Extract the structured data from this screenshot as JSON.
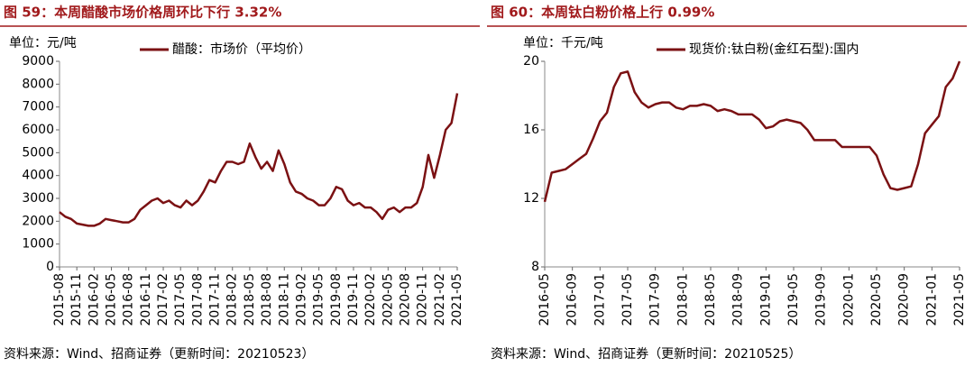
{
  "chart_data": [
    {
      "type": "line",
      "title": "图 59：本周醋酸市场价格周环比下行 3.32%",
      "unit_label": "单位：元/吨",
      "source": "资料来源：Wind、招商证券（更新时间：20210523）",
      "x": [
        "2015-08",
        "2015-09",
        "2015-10",
        "2015-11",
        "2015-12",
        "2016-01",
        "2016-02",
        "2016-03",
        "2016-04",
        "2016-05",
        "2016-06",
        "2016-07",
        "2016-08",
        "2016-09",
        "2016-10",
        "2016-11",
        "2016-12",
        "2017-01",
        "2017-02",
        "2017-03",
        "2017-04",
        "2017-05",
        "2017-06",
        "2017-07",
        "2017-08",
        "2017-09",
        "2017-10",
        "2017-11",
        "2017-12",
        "2018-01",
        "2018-02",
        "2018-03",
        "2018-04",
        "2018-05",
        "2018-06",
        "2018-07",
        "2018-08",
        "2018-09",
        "2018-10",
        "2018-11",
        "2018-12",
        "2019-01",
        "2019-02",
        "2019-03",
        "2019-04",
        "2019-05",
        "2019-06",
        "2019-07",
        "2019-08",
        "2019-09",
        "2019-10",
        "2019-11",
        "2019-12",
        "2020-01",
        "2020-02",
        "2020-03",
        "2020-04",
        "2020-05",
        "2020-06",
        "2020-07",
        "2020-08",
        "2020-09",
        "2020-10",
        "2020-11",
        "2020-12",
        "2021-01",
        "2021-02",
        "2021-03",
        "2021-04",
        "2021-05"
      ],
      "series": [
        {
          "name": "醋酸：市场价（平均价）",
          "color": "#7b1113",
          "values": [
            2400,
            2200,
            2100,
            1900,
            1850,
            1800,
            1800,
            1900,
            2100,
            2050,
            2000,
            1950,
            1950,
            2100,
            2500,
            2700,
            2900,
            3000,
            2800,
            2900,
            2700,
            2600,
            2900,
            2700,
            2900,
            3300,
            3800,
            3700,
            4200,
            4600,
            4600,
            4500,
            4600,
            5400,
            4800,
            4300,
            4600,
            4200,
            5100,
            4500,
            3700,
            3300,
            3200,
            3000,
            2900,
            2700,
            2700,
            3000,
            3500,
            3400,
            2900,
            2700,
            2800,
            2600,
            2600,
            2400,
            2100,
            2500,
            2600,
            2400,
            2600,
            2600,
            2800,
            3500,
            4900,
            3900,
            4900,
            6000,
            6300,
            7600
          ]
        }
      ],
      "xticks": [
        "2015-08",
        "2015-11",
        "2016-02",
        "2016-05",
        "2016-08",
        "2016-11",
        "2017-02",
        "2017-05",
        "2017-08",
        "2017-11",
        "2018-02",
        "2018-05",
        "2018-08",
        "2018-11",
        "2019-02",
        "2019-05",
        "2019-08",
        "2019-11",
        "2020-02",
        "2020-05",
        "2020-08",
        "2020-11",
        "2021-02",
        "2021-05"
      ],
      "ylim": [
        0,
        9000
      ],
      "yticks": [
        0,
        1000,
        2000,
        3000,
        4000,
        5000,
        6000,
        7000,
        8000,
        9000
      ]
    },
    {
      "type": "line",
      "title": "图 60：本周钛白粉价格上行 0.99%",
      "unit_label": "单位：千元/吨",
      "source": "资料来源：Wind、招商证券（更新时间：20210525）",
      "x": [
        "2016-05",
        "2016-06",
        "2016-07",
        "2016-08",
        "2016-09",
        "2016-10",
        "2016-11",
        "2016-12",
        "2017-01",
        "2017-02",
        "2017-03",
        "2017-04",
        "2017-05",
        "2017-06",
        "2017-07",
        "2017-08",
        "2017-09",
        "2017-10",
        "2017-11",
        "2017-12",
        "2018-01",
        "2018-02",
        "2018-03",
        "2018-04",
        "2018-05",
        "2018-06",
        "2018-07",
        "2018-08",
        "2018-09",
        "2018-10",
        "2018-11",
        "2018-12",
        "2019-01",
        "2019-02",
        "2019-03",
        "2019-04",
        "2019-05",
        "2019-06",
        "2019-07",
        "2019-08",
        "2019-09",
        "2019-10",
        "2019-11",
        "2019-12",
        "2020-01",
        "2020-02",
        "2020-03",
        "2020-04",
        "2020-05",
        "2020-06",
        "2020-07",
        "2020-08",
        "2020-09",
        "2020-10",
        "2020-11",
        "2020-12",
        "2021-01",
        "2021-02",
        "2021-03",
        "2021-04",
        "2021-05"
      ],
      "series": [
        {
          "name": "现货价:钛白粉(金红石型):国内",
          "color": "#7b1113",
          "values": [
            11.8,
            13.5,
            13.6,
            13.7,
            14.0,
            14.3,
            14.6,
            15.5,
            16.5,
            17.0,
            18.5,
            19.3,
            19.4,
            18.2,
            17.6,
            17.3,
            17.5,
            17.6,
            17.6,
            17.3,
            17.2,
            17.4,
            17.4,
            17.5,
            17.4,
            17.1,
            17.2,
            17.1,
            16.9,
            16.9,
            16.9,
            16.6,
            16.1,
            16.2,
            16.5,
            16.6,
            16.5,
            16.4,
            16.0,
            15.4,
            15.4,
            15.4,
            15.4,
            15.0,
            15.0,
            15.0,
            15.0,
            15.0,
            14.5,
            13.4,
            12.6,
            12.5,
            12.6,
            12.7,
            14.0,
            15.8,
            16.3,
            16.8,
            18.5,
            19.0,
            20.0
          ]
        }
      ],
      "xticks": [
        "2016-05",
        "2016-09",
        "2017-01",
        "2017-05",
        "2017-09",
        "2018-01",
        "2018-05",
        "2018-09",
        "2019-01",
        "2019-05",
        "2019-09",
        "2020-01",
        "2020-05",
        "2020-09",
        "2021-01",
        "2021-05"
      ],
      "ylim": [
        8,
        20
      ],
      "yticks": [
        8,
        12,
        16,
        20
      ]
    }
  ]
}
